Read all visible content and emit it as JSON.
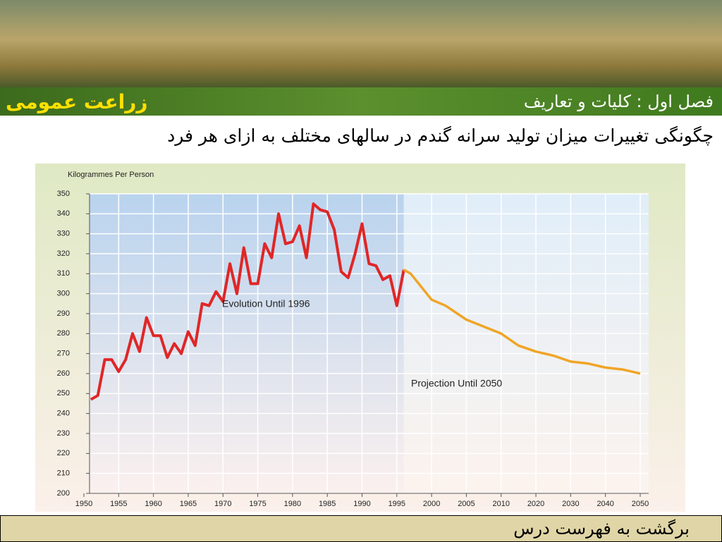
{
  "header": {
    "course": "زراعت عمومی",
    "chapter": "فصل اول : کلیات و تعاریف",
    "heading": "چگونگی تغییرات میزان تولید سرانه گندم در سالهای مختلف به ازای هر فرد"
  },
  "footer": {
    "link": "برگشت به فهرست درس"
  },
  "chart_data": {
    "type": "line",
    "y_label": "Kilogrammes Per Person",
    "xticks": [
      1950,
      1955,
      1960,
      1965,
      1970,
      1975,
      1980,
      1985,
      1990,
      1995,
      2000,
      2005,
      2010,
      2020,
      2030,
      2040,
      2050
    ],
    "xlim": [
      1950,
      2050
    ],
    "ylim": [
      200,
      350
    ],
    "yticks": [
      200,
      210,
      220,
      230,
      240,
      250,
      260,
      270,
      280,
      290,
      300,
      310,
      320,
      330,
      340,
      350
    ],
    "grid": true,
    "series": [
      {
        "name": "Evolution Until 1996",
        "color": "#e02626",
        "x": [
          1951,
          1952,
          1953,
          1954,
          1955,
          1956,
          1957,
          1958,
          1959,
          1960,
          1961,
          1962,
          1963,
          1964,
          1965,
          1966,
          1967,
          1968,
          1969,
          1970,
          1971,
          1972,
          1973,
          1974,
          1975,
          1976,
          1977,
          1978,
          1979,
          1980,
          1981,
          1982,
          1983,
          1984,
          1985,
          1986,
          1987,
          1988,
          1989,
          1990,
          1991,
          1992,
          1993,
          1994,
          1995,
          1996
        ],
        "values": [
          247,
          249,
          267,
          267,
          261,
          267,
          280,
          271,
          288,
          279,
          279,
          268,
          275,
          270,
          281,
          274,
          295,
          294,
          301,
          296,
          315,
          300,
          323,
          305,
          305,
          325,
          318,
          340,
          325,
          326,
          334,
          318,
          345,
          342,
          341,
          332,
          311,
          308,
          320,
          335,
          315,
          314,
          307,
          309,
          294,
          312
        ]
      },
      {
        "name": "Projection Until 2050",
        "color": "#f0a526",
        "x": [
          1996,
          1997,
          2000,
          2002,
          2005,
          2010,
          2015,
          2020,
          2025,
          2030,
          2035,
          2040,
          2045,
          2050
        ],
        "values": [
          312,
          310,
          297,
          294,
          287,
          280,
          274,
          271,
          269,
          266,
          265,
          263,
          262,
          260
        ]
      }
    ]
  }
}
